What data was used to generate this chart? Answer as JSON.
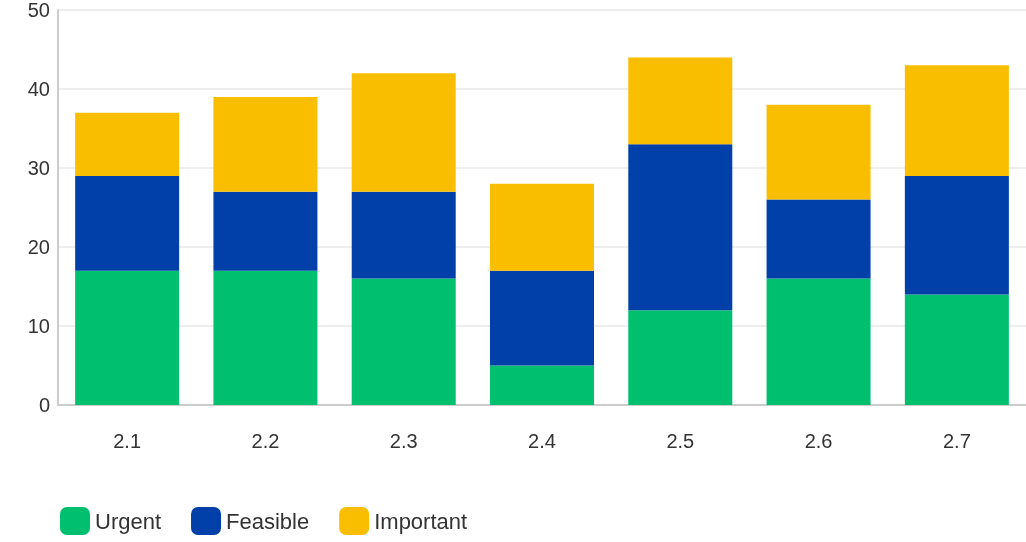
{
  "chart_data": {
    "type": "bar",
    "stacked": true,
    "categories": [
      "2.1",
      "2.2",
      "2.3",
      "2.4",
      "2.5",
      "2.6",
      "2.7"
    ],
    "series": [
      {
        "name": "Urgent",
        "color": "#00bf6f",
        "values": [
          17,
          17,
          16,
          5,
          12,
          16,
          14
        ]
      },
      {
        "name": "Feasible",
        "color": "#0040a8",
        "values": [
          12,
          10,
          11,
          12,
          21,
          10,
          15
        ]
      },
      {
        "name": "Important",
        "color": "#f9be00",
        "values": [
          8,
          12,
          15,
          11,
          11,
          12,
          14
        ]
      }
    ],
    "ylim": [
      0,
      50
    ],
    "yticks": [
      0,
      10,
      20,
      30,
      40,
      50
    ],
    "grid": "y",
    "legend": "bottom left"
  }
}
